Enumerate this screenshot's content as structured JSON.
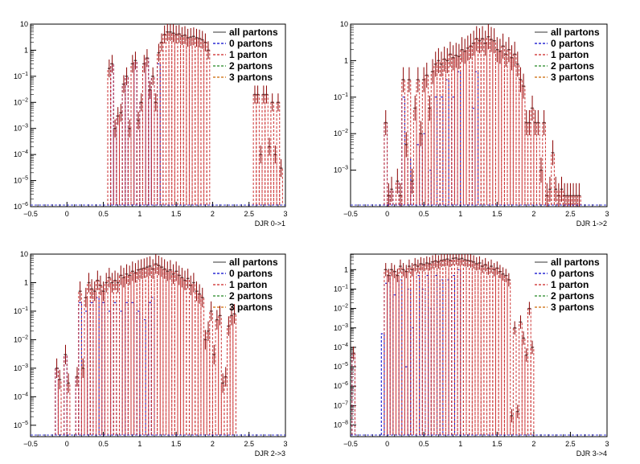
{
  "chart_data": [
    {
      "type": "line",
      "xlabel": "DJR 0->1",
      "ylabel": "",
      "log_y": true,
      "xlim": [
        -0.5,
        3
      ],
      "ylim_exp": [
        -6,
        1
      ],
      "x_ticks": [
        "-0.5",
        "0",
        "0.5",
        "1",
        "1.5",
        "2",
        "2.5",
        "3"
      ],
      "y_ticks": [
        "10^-6",
        "10^-5",
        "10^-4",
        "10^-3",
        "10^-2",
        "10^-1",
        "1",
        "10"
      ],
      "legend": [
        "all partons",
        "0 partons",
        "1 parton",
        "2 partons",
        "3 partons"
      ],
      "legend_position": "top-right",
      "colors": {
        "all": "#555555",
        "p0": "#0000cc",
        "p1": "#cc2222",
        "p2": "#228822",
        "p3": "#cc6600"
      },
      "series": [
        {
          "name": "all partons",
          "x": [
            0.58,
            0.62,
            0.66,
            0.7,
            0.74,
            0.78,
            0.82,
            0.86,
            0.9,
            0.94,
            0.98,
            1.02,
            1.06,
            1.1,
            1.14,
            1.18,
            1.22,
            1.26,
            1.3,
            1.34,
            1.38,
            1.42,
            1.46,
            1.5,
            1.54,
            1.58,
            1.62,
            1.66,
            1.7,
            1.74,
            1.78,
            1.82,
            1.86,
            1.9,
            1.94,
            2.58,
            2.62,
            2.66,
            2.7,
            2.74,
            2.78,
            2.82,
            2.86,
            2.9,
            2.94
          ],
          "y": [
            0.2,
            0.3,
            0.001,
            0.003,
            0.004,
            0.05,
            0.1,
            0.001,
            0.3,
            0.4,
            0.002,
            0.01,
            0.3,
            0.5,
            0.03,
            0.1,
            0.01,
            0.8,
            2,
            4,
            5,
            5,
            4.5,
            4,
            4.2,
            3.5,
            3.8,
            3,
            3.2,
            3.4,
            3,
            2.8,
            2.5,
            2,
            1,
            0.02,
            0.02,
            0.0001,
            0.02,
            0.02,
            0.0002,
            0.01,
            0.0001,
            0.01,
            3e-05
          ]
        },
        {
          "name": "0 partons",
          "x": [
            0.58,
            0.62,
            0.66,
            0.7,
            0.74,
            0.78,
            0.82,
            0.86,
            0.9,
            0.94,
            0.98,
            1.02,
            1.06,
            1.1,
            1.14,
            1.18,
            1.22,
            1.26
          ],
          "y": [
            0.2,
            0.3,
            0.001,
            0.003,
            0.004,
            0.05,
            0.1,
            0.001,
            0.3,
            0.4,
            0.002,
            0.01,
            0.3,
            0.5,
            0.03,
            0.1,
            0.01,
            0.3
          ]
        }
      ]
    },
    {
      "type": "line",
      "xlabel": "DJR 1->2",
      "ylabel": "",
      "log_y": true,
      "xlim": [
        -0.5,
        3
      ],
      "ylim_exp": [
        -4,
        1
      ],
      "x_ticks": [
        "-0.5",
        "0",
        "0.5",
        "1",
        "1.5",
        "2",
        "2.5",
        "3"
      ],
      "y_ticks": [
        "10^-3",
        "10^-2",
        "10^-1",
        "1",
        "10"
      ],
      "legend": [
        "all partons",
        "0 partons",
        "1 parton",
        "2 partons",
        "3 partons"
      ],
      "legend_position": "top-right",
      "series": [
        {
          "name": "all partons",
          "x": [
            -0.02,
            0.02,
            0.06,
            0.14,
            0.18,
            0.22,
            0.26,
            0.3,
            0.34,
            0.38,
            0.42,
            0.46,
            0.5,
            0.54,
            0.58,
            0.62,
            0.66,
            0.7,
            0.74,
            0.78,
            0.82,
            0.86,
            0.9,
            0.94,
            0.98,
            1.02,
            1.06,
            1.1,
            1.14,
            1.18,
            1.22,
            1.26,
            1.3,
            1.34,
            1.38,
            1.42,
            1.46,
            1.5,
            1.54,
            1.58,
            1.62,
            1.66,
            1.7,
            1.74,
            1.78,
            1.82,
            1.86,
            1.9,
            1.94,
            1.98,
            2.02,
            2.06,
            2.1,
            2.14,
            2.18,
            2.22,
            2.26,
            2.3,
            2.34,
            2.38,
            2.42,
            2.46,
            2.5,
            2.54,
            2.58,
            2.62
          ],
          "y": [
            0.02,
            0.0002,
            0.0003,
            0.0005,
            0.0002,
            0.3,
            0.005,
            0.3,
            0.0005,
            0.05,
            0.3,
            0.01,
            0.3,
            0.4,
            0.05,
            0.5,
            0.8,
            1,
            0.8,
            1.1,
            1,
            1.5,
            1.2,
            1.4,
            1.3,
            2,
            1.8,
            2.2,
            2.5,
            3,
            4,
            3.5,
            4,
            3,
            4.5,
            3.8,
            3.5,
            2,
            1.8,
            2.5,
            1.5,
            2,
            1.2,
            1.5,
            0.8,
            0.3,
            0.2,
            0.02,
            0.02,
            0.05,
            0.02,
            0.02,
            0.001,
            0.02,
            0.0002,
            0.0003,
            0.003,
            0.0003,
            0.0002,
            0.0003,
            0.0002,
            0.0002,
            0.0002,
            0.0002,
            0.0002,
            0.0002
          ]
        },
        {
          "name": "0 partons",
          "x": [
            -0.02,
            0.02,
            0.06,
            0.14,
            0.22,
            0.3,
            0.34,
            0.42,
            0.5,
            0.58,
            0.66,
            0.74,
            0.82,
            0.9,
            0.98,
            1.18,
            1.22
          ],
          "y": [
            0.02,
            0.0002,
            0.0003,
            0.0005,
            0.1,
            0.002,
            0.0005,
            0.005,
            0.01,
            0.001,
            0.1,
            0.1,
            0.3,
            0.1,
            0.5,
            0.05,
            0.5
          ]
        }
      ]
    },
    {
      "type": "line",
      "xlabel": "DJR 2->3",
      "ylabel": "",
      "log_y": true,
      "xlim": [
        -0.5,
        3
      ],
      "ylim_exp": [
        -5.4,
        1
      ],
      "x_ticks": [
        "-0.5",
        "0",
        "0.5",
        "1",
        "1.5",
        "2",
        "2.5",
        "3"
      ],
      "y_ticks": [
        "10^-5",
        "10^-4",
        "10^-3",
        "10^-2",
        "10^-1",
        "1",
        "10"
      ],
      "legend": [
        "all partons",
        "0 partons",
        "1 parton",
        "2 partons",
        "3 partons"
      ],
      "legend_position": "top-right",
      "series": [
        {
          "name": "all partons",
          "x": [
            -0.14,
            -0.1,
            -0.02,
            0.02,
            0.14,
            0.18,
            0.22,
            0.26,
            0.3,
            0.34,
            0.38,
            0.42,
            0.46,
            0.5,
            0.54,
            0.58,
            0.62,
            0.66,
            0.7,
            0.74,
            0.78,
            0.82,
            0.86,
            0.9,
            0.94,
            0.98,
            1.02,
            1.06,
            1.1,
            1.14,
            1.18,
            1.22,
            1.26,
            1.3,
            1.34,
            1.38,
            1.42,
            1.46,
            1.5,
            1.54,
            1.58,
            1.62,
            1.66,
            1.7,
            1.74,
            1.78,
            1.82,
            1.86,
            1.9,
            1.94,
            1.98,
            2.02,
            2.06,
            2.1,
            2.14,
            2.18,
            2.22,
            2.26,
            2.3
          ],
          "y": [
            0.001,
            0.0004,
            0.003,
            0.0003,
            0.0005,
            0.5,
            0.001,
            0.3,
            1,
            0.6,
            0.5,
            1.2,
            0.8,
            0.5,
            1,
            1.5,
            1,
            1.2,
            1,
            1.8,
            1.5,
            2,
            1.8,
            2.5,
            2.2,
            2.8,
            3,
            3.2,
            3.5,
            3.8,
            3,
            4.5,
            4,
            3.5,
            3,
            2.5,
            2.8,
            2,
            2.5,
            1.8,
            1.5,
            1.2,
            1.4,
            0.8,
            1,
            0.5,
            0.4,
            0.3,
            0.01,
            0.02,
            0.1,
            0.003,
            0.05,
            0.07,
            0.0003,
            0.0005,
            0.03,
            0.07,
            0.08
          ]
        },
        {
          "name": "0 partons",
          "x": [
            -0.14,
            -0.02,
            0.14,
            0.18,
            0.26,
            0.34,
            0.42,
            0.5,
            0.58,
            0.66,
            0.74,
            0.82,
            0.9,
            0.98,
            1.06,
            1.14,
            1.18
          ],
          "y": [
            0.001,
            0.003,
            0.0005,
            0.2,
            0.1,
            0.2,
            0.3,
            0.2,
            0.1,
            0.2,
            0.1,
            0.2,
            0.2,
            0.1,
            0.05,
            0.2,
            0.3
          ]
        }
      ]
    },
    {
      "type": "line",
      "xlabel": "DJR 3->4",
      "ylabel": "",
      "log_y": true,
      "xlim": [
        -0.5,
        3
      ],
      "ylim_exp": [
        -8.6,
        0.8
      ],
      "x_ticks": [
        "-0.5",
        "0",
        "0.5",
        "1",
        "1.5",
        "2",
        "2.5",
        "3"
      ],
      "y_ticks": [
        "10^-8",
        "10^-7",
        "10^-6",
        "10^-5",
        "10^-4",
        "10^-3",
        "10^-2",
        "10^-1",
        "1"
      ],
      "legend": [
        "all partons",
        "0 partons",
        "1 parton",
        "2 partons",
        "3 partons"
      ],
      "legend_position": "top-right",
      "series": [
        {
          "name": "all partons",
          "x": [
            -0.46,
            -0.02,
            0.02,
            0.06,
            0.1,
            0.14,
            0.18,
            0.22,
            0.26,
            0.3,
            0.34,
            0.38,
            0.42,
            0.46,
            0.5,
            0.54,
            0.58,
            0.62,
            0.66,
            0.7,
            0.74,
            0.78,
            0.82,
            0.86,
            0.9,
            0.94,
            0.98,
            1.02,
            1.06,
            1.1,
            1.14,
            1.18,
            1.22,
            1.26,
            1.3,
            1.34,
            1.38,
            1.42,
            1.46,
            1.5,
            1.54,
            1.58,
            1.62,
            1.66,
            1.7,
            1.74,
            1.78,
            1.82,
            1.86,
            1.9,
            1.94,
            1.98
          ],
          "y": [
            5e-05,
            1,
            0.5,
            1,
            0.8,
            0.5,
            1.5,
            1,
            0.8,
            1.5,
            1,
            1.8,
            1.5,
            2,
            1.8,
            2.2,
            2,
            2.5,
            2.8,
            2.5,
            3,
            3.2,
            3.5,
            3,
            3.8,
            4,
            3.5,
            3.8,
            3.2,
            3,
            2.8,
            2.5,
            2,
            2.2,
            1.5,
            1.8,
            1.2,
            1.5,
            1,
            1.2,
            0.8,
            0.6,
            0.5,
            0.3,
            3e-08,
            0.001,
            5e-08,
            0.002,
            0.0003,
            4e-05,
            0.01,
            0.0001
          ]
        },
        {
          "name": "0 partons",
          "x": [
            -0.46,
            -0.06,
            -0.02,
            0.02,
            0.1,
            0.18,
            0.26,
            0.3,
            0.34,
            0.42,
            0.5,
            0.54,
            0.58,
            0.66,
            0.74,
            0.82,
            0.9,
            0.98
          ],
          "y": [
            5e-05,
            0.0005,
            0.2,
            0.5,
            0.05,
            0.3,
            1e-05,
            0.1,
            0.001,
            0.5,
            0.1,
            0.5,
            0.01,
            0.5,
            0.3,
            0.3,
            0.5,
            1
          ]
        }
      ]
    }
  ]
}
